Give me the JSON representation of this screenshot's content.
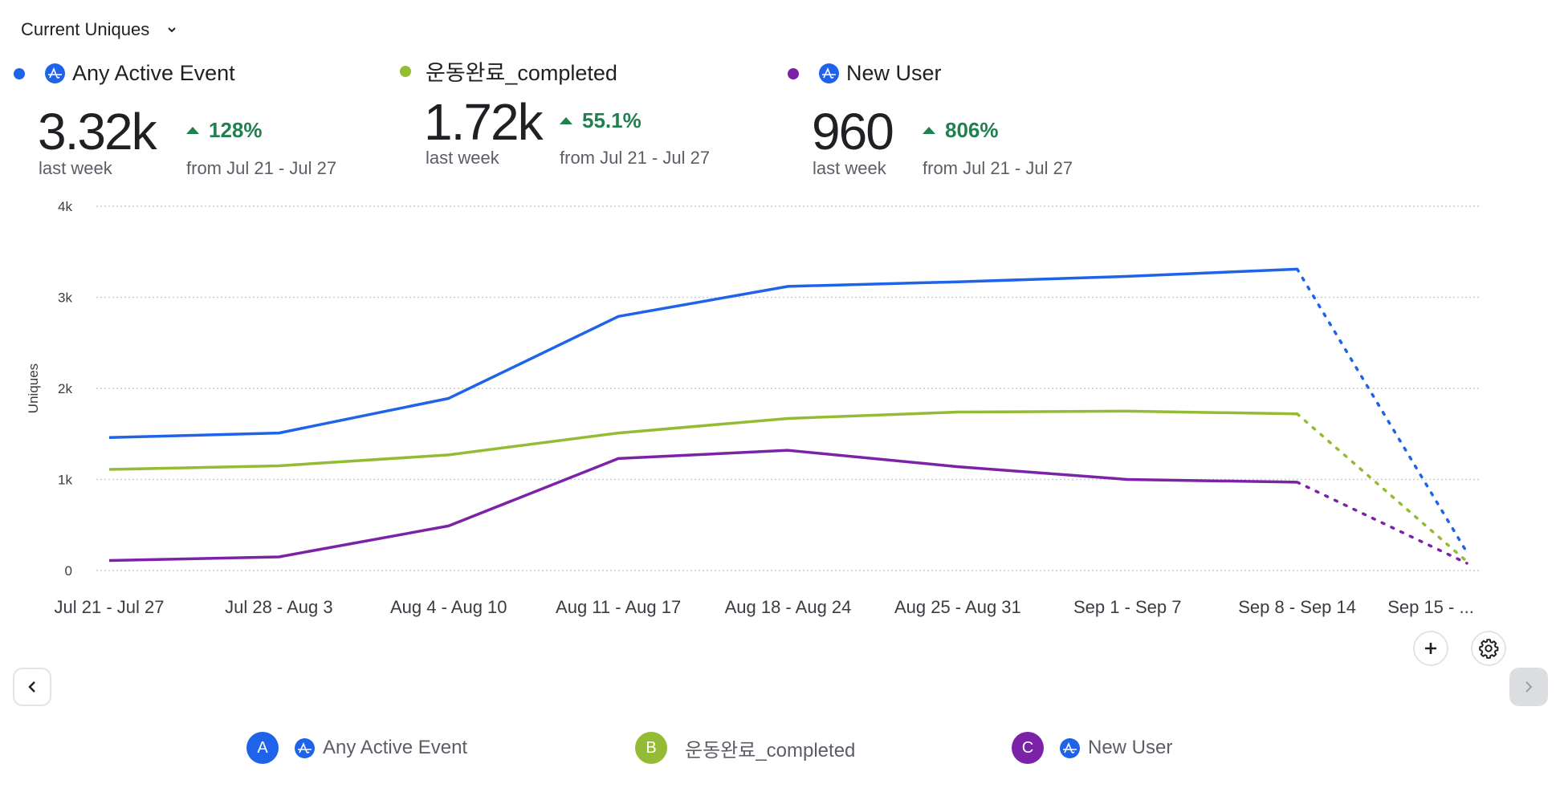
{
  "header": {
    "metric_selector": "Current Uniques"
  },
  "series_summary": [
    {
      "name": "Any Active Event",
      "color": "#1f63e8",
      "has_amplitude_icon": true,
      "value": "3.32k",
      "value_caption": "last week",
      "change": "128%",
      "change_direction": "up",
      "change_caption": "from Jul 21 - Jul 27"
    },
    {
      "name": "운동완료_completed",
      "color": "#93bb33",
      "has_amplitude_icon": false,
      "value": "1.72k",
      "value_caption": "last week",
      "change": "55.1%",
      "change_direction": "up",
      "change_caption": "from Jul 21 - Jul 27"
    },
    {
      "name": "New User",
      "color": "#7b22a8",
      "has_amplitude_icon": true,
      "value": "960",
      "value_caption": "last week",
      "change": "806%",
      "change_direction": "up",
      "change_caption": "from Jul 21 - Jul 27"
    }
  ],
  "chart_data": {
    "type": "line",
    "title": "",
    "xlabel": "",
    "ylabel": "Uniques",
    "ylim": [
      0,
      4000
    ],
    "yticks": [
      0,
      1000,
      2000,
      3000,
      4000
    ],
    "ytick_labels": [
      "0",
      "1k",
      "2k",
      "3k",
      "4k"
    ],
    "grid": true,
    "categories": [
      "Jul 21 - Jul 27",
      "Jul 28 - Aug 3",
      "Aug 4 - Aug 10",
      "Aug 11 - Aug 17",
      "Aug 18 - Aug 24",
      "Aug 25 - Aug 31",
      "Sep 1 - Sep 7",
      "Sep 8 - Sep 14",
      "Sep 15 - ..."
    ],
    "incomplete_from_index": 7,
    "series": [
      {
        "name": "Any Active Event",
        "color": "#1f63e8",
        "values": [
          1460,
          1510,
          1890,
          2790,
          3120,
          3170,
          3230,
          3310,
          200
        ]
      },
      {
        "name": "운동완료_completed",
        "color": "#93bb33",
        "values": [
          1110,
          1150,
          1270,
          1510,
          1670,
          1740,
          1750,
          1720,
          100
        ]
      },
      {
        "name": "New User",
        "color": "#7b22a8",
        "values": [
          110,
          150,
          490,
          1230,
          1320,
          1140,
          1000,
          970,
          80
        ]
      }
    ]
  },
  "controls": {
    "add_icon": "plus-icon",
    "settings_icon": "gear-icon",
    "prev_icon": "chevron-left-icon",
    "next_icon": "chevron-right-icon"
  },
  "legend": [
    {
      "badge": "A",
      "label": "Any Active Event",
      "color": "#1f63e8",
      "has_amplitude_icon": true
    },
    {
      "badge": "B",
      "label": "운동완료_completed",
      "color": "#93bb33",
      "has_amplitude_icon": false
    },
    {
      "badge": "C",
      "label": "New User",
      "color": "#7b22a8",
      "has_amplitude_icon": true
    }
  ]
}
